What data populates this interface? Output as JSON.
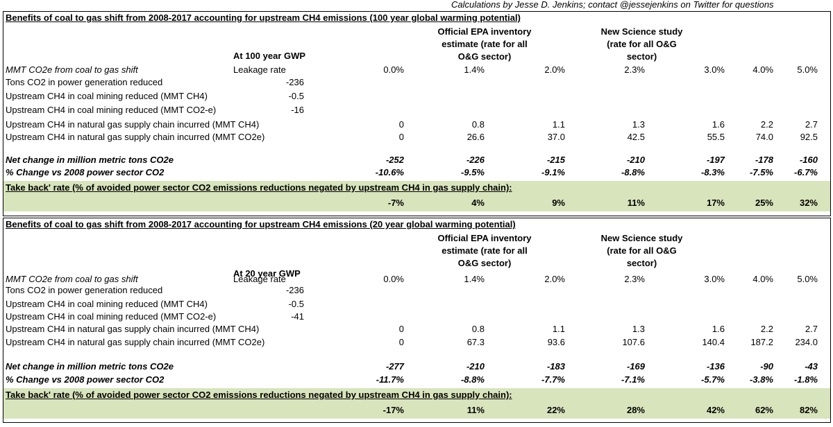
{
  "credit": "Calculations by Jesse D. Jenkins; contact @jessejenkins on Twitter for questions",
  "columns": {
    "epa_header": "Official EPA inventory estimate (rate for all O&G sector)",
    "science_header": "New Science study (rate for all O&G sector)",
    "leakage_label": "Leakage rate",
    "leakage_rates": [
      "0.0%",
      "1.4%",
      "2.0%",
      "2.3%",
      "3.0%",
      "4.0%",
      "5.0%"
    ]
  },
  "row_labels": {
    "mmt_shift": "MMT CO2e from coal to gas shift",
    "tons_co2": "Tons CO2 in power generation reduced",
    "coal_ch4": "Upstream CH4 in coal mining reduced (MMT CH4)",
    "coal_co2e": "Upstream CH4 in coal mining reduced (MMT CO2-e)",
    "gas_ch4": "Upstream CH4 in natural gas supply chain incurred (MMT CH4)",
    "gas_co2e": "Upstream CH4 in natural gas supply chain incurred (MMT CO2e)",
    "net_change": "Net change in million metric tons CO2e",
    "pct_change": "% Change vs 2008 power sector CO2",
    "takeback": "Take back' rate (% of avoided power sector CO2 emissions reductions negated by upstream CH4 in gas supply chain):"
  },
  "table100": {
    "title": "Benefits of coal to gas shift from 2008-2017 accounting for upstream CH4 emissions (100 year global warming potential)",
    "gwp_label": "At 100 year GWP",
    "tons_co2": "-236",
    "coal_ch4": "-0.5",
    "coal_co2e": "-16",
    "gas_ch4": [
      "0",
      "0.8",
      "1.1",
      "1.3",
      "1.6",
      "2.2",
      "2.7"
    ],
    "gas_co2e": [
      "0",
      "26.6",
      "37.0",
      "42.5",
      "55.5",
      "74.0",
      "92.5"
    ],
    "net_change": [
      "-252",
      "-226",
      "-215",
      "-210",
      "-197",
      "-178",
      "-160"
    ],
    "pct_change": [
      "-10.6%",
      "-9.5%",
      "-9.1%",
      "-8.8%",
      "-8.3%",
      "-7.5%",
      "-6.7%"
    ],
    "takeback": [
      "-7%",
      "4%",
      "9%",
      "11%",
      "17%",
      "25%",
      "32%"
    ]
  },
  "table20": {
    "title": "Benefits of coal to gas shift from 2008-2017 accounting for upstream CH4 emissions (20 year global warming potential)",
    "gwp_label": "At 20 year GWP",
    "tons_co2": "-236",
    "coal_ch4": "-0.5",
    "coal_co2e": "-41",
    "gas_ch4": [
      "0",
      "0.8",
      "1.1",
      "1.3",
      "1.6",
      "2.2",
      "2.7"
    ],
    "gas_co2e": [
      "0",
      "67.3",
      "93.6",
      "107.6",
      "140.4",
      "187.2",
      "234.0"
    ],
    "net_change": [
      "-277",
      "-210",
      "-183",
      "-169",
      "-136",
      "-90",
      "-43"
    ],
    "pct_change": [
      "-11.7%",
      "-8.8%",
      "-7.7%",
      "-7.1%",
      "-5.7%",
      "-3.8%",
      "-1.8%"
    ],
    "takeback": [
      "-17%",
      "11%",
      "22%",
      "28%",
      "42%",
      "62%",
      "82%"
    ]
  },
  "colors": {
    "takeback_band": "#d8e4bc"
  }
}
